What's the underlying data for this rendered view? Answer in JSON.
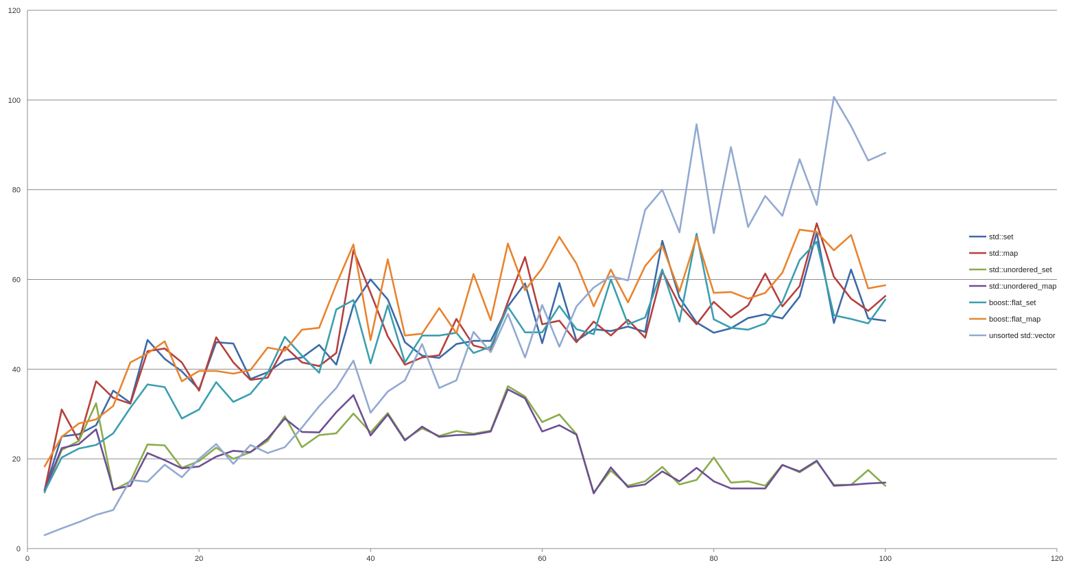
{
  "chart_data": {
    "type": "line",
    "title": "",
    "xlabel": "",
    "ylabel": "",
    "xlim": [
      0,
      120
    ],
    "ylim": [
      0,
      120
    ],
    "xticks": [
      0,
      20,
      40,
      60,
      80,
      100,
      120
    ],
    "yticks": [
      0,
      20,
      40,
      60,
      80,
      100,
      120
    ],
    "grid": "horizontal",
    "legend_position": "right",
    "x": [
      2,
      4,
      6,
      8,
      10,
      12,
      14,
      16,
      18,
      20,
      22,
      24,
      26,
      28,
      30,
      32,
      34,
      36,
      38,
      40,
      42,
      44,
      46,
      48,
      50,
      52,
      54,
      56,
      58,
      60,
      62,
      64,
      66,
      68,
      70,
      72,
      74,
      76,
      78,
      80,
      82,
      84,
      86,
      88,
      90,
      92,
      94,
      96,
      98,
      100
    ],
    "series": [
      {
        "name": "std::set",
        "color": "#3b6aa8",
        "values": [
          13,
          25,
          25.5,
          27.5,
          35.2,
          32.5,
          46.5,
          42.3,
          39.5,
          35.5,
          46,
          45.7,
          37.8,
          39.3,
          42,
          42.6,
          45.4,
          41,
          54.3,
          60,
          55.5,
          46,
          43,
          42.5,
          45.6,
          46.3,
          46.3,
          54,
          59.1,
          45.8,
          59.2,
          46.3,
          48.9,
          48.5,
          49.5,
          48.3,
          68.6,
          56,
          50.4,
          48.1,
          49.1,
          51.4,
          52.2,
          51.3,
          56.2,
          70.5,
          50.3,
          62.2,
          51.3,
          50.8
        ]
      },
      {
        "name": "std::map",
        "color": "#b5403d",
        "values": [
          13,
          31,
          24,
          37.3,
          33.6,
          32.3,
          44,
          44.6,
          41.5,
          35.2,
          47.1,
          41.5,
          37.6,
          38.1,
          45,
          41.5,
          40.7,
          43.6,
          66.5,
          57,
          47.3,
          41,
          42.6,
          43.1,
          51.2,
          45.3,
          44.3,
          55,
          65,
          50,
          50.8,
          46,
          50.6,
          47.5,
          51,
          47,
          61.8,
          54.3,
          50,
          55,
          51.5,
          54.2,
          61.3,
          54,
          58.5,
          72.5,
          60.6,
          55.7,
          53,
          56.3
        ]
      },
      {
        "name": "std::unordered_set",
        "color": "#8aac4b",
        "values": [
          12.5,
          22,
          24,
          32.4,
          13,
          15,
          23.2,
          23,
          18,
          19.5,
          22.5,
          20,
          21.5,
          24,
          29.5,
          22.6,
          25.3,
          25.7,
          30.1,
          25.9,
          30.2,
          24.3,
          26.8,
          25.1,
          26.2,
          25.6,
          26.3,
          36.2,
          33.9,
          28.2,
          29.9,
          25.5,
          12.5,
          17.4,
          14,
          15,
          18.2,
          14.3,
          15.3,
          20.3,
          14.7,
          15,
          14,
          18.7,
          17,
          19.4,
          14.2,
          14.2,
          17.5,
          14
        ]
      },
      {
        "name": "std::unordered_map",
        "color": "#6d4f93",
        "values": [
          13,
          22.4,
          23.3,
          26.6,
          13.2,
          14,
          21.3,
          19.7,
          17.9,
          18.3,
          20.5,
          21.8,
          21.5,
          24.5,
          29,
          26,
          25.9,
          30.4,
          34.2,
          25.2,
          29.9,
          24.1,
          27.2,
          24.9,
          25.3,
          25.4,
          26.1,
          35.5,
          33.5,
          26.1,
          27.5,
          25.4,
          12.3,
          18.1,
          13.7,
          14.3,
          17.2,
          15,
          18,
          15,
          13.4,
          13.4,
          13.4,
          18.6,
          17.2,
          19.6,
          14,
          14.2,
          14.5,
          14.7
        ]
      },
      {
        "name": "boost::flat_set",
        "color": "#3a9fb0",
        "values": [
          12.7,
          20.3,
          22.3,
          23.1,
          25.7,
          31.4,
          36.6,
          36,
          29,
          31,
          37.1,
          32.7,
          34.5,
          39.1,
          47.2,
          43,
          39.2,
          53.3,
          55.4,
          41.3,
          54.2,
          41.5,
          47.5,
          47.5,
          48.1,
          43.6,
          45,
          53.9,
          48.2,
          48.2,
          54.1,
          48.9,
          47.8,
          60,
          50,
          51.5,
          62.2,
          50.6,
          70.2,
          51.1,
          49.2,
          48.8,
          50.2,
          55,
          64.3,
          68.4,
          52,
          51.2,
          50.2,
          55.5
        ]
      },
      {
        "name": "boost::flat_map",
        "color": "#e8842f",
        "values": [
          18.3,
          24.9,
          27.9,
          28.8,
          31.8,
          41.5,
          43.5,
          46.2,
          37.3,
          39.6,
          39.6,
          39,
          39.8,
          44.8,
          44.1,
          48.8,
          49.2,
          58.9,
          67.8,
          46.5,
          64.5,
          47.5,
          47.9,
          53.6,
          48,
          61.2,
          50.9,
          68,
          57.6,
          62.5,
          69.5,
          63.5,
          54,
          62.2,
          54.9,
          63,
          67.5,
          57.3,
          69.5,
          57,
          57.2,
          55.7,
          57,
          61.5,
          71.1,
          70.6,
          66.5,
          69.9,
          58,
          58.7
        ]
      },
      {
        "name": "unsorted std::vector",
        "color": "#92a9d1",
        "values": [
          3,
          4.5,
          5.9,
          7.5,
          8.6,
          15.3,
          14.9,
          18.7,
          15.9,
          20,
          23.3,
          18.9,
          23.1,
          21.3,
          22.6,
          27,
          31.7,
          35.8,
          41.9,
          30.3,
          35,
          37.5,
          45.6,
          35.8,
          37.5,
          48.3,
          43.8,
          52.3,
          42.6,
          54.3,
          45,
          54,
          58.2,
          60.7,
          59.8,
          75.5,
          80,
          70.5,
          94.6,
          70.3,
          89.5,
          71.7,
          78.6,
          74.2,
          86.8,
          76.6,
          100.7,
          94.2,
          86.5,
          88.2
        ]
      }
    ]
  }
}
